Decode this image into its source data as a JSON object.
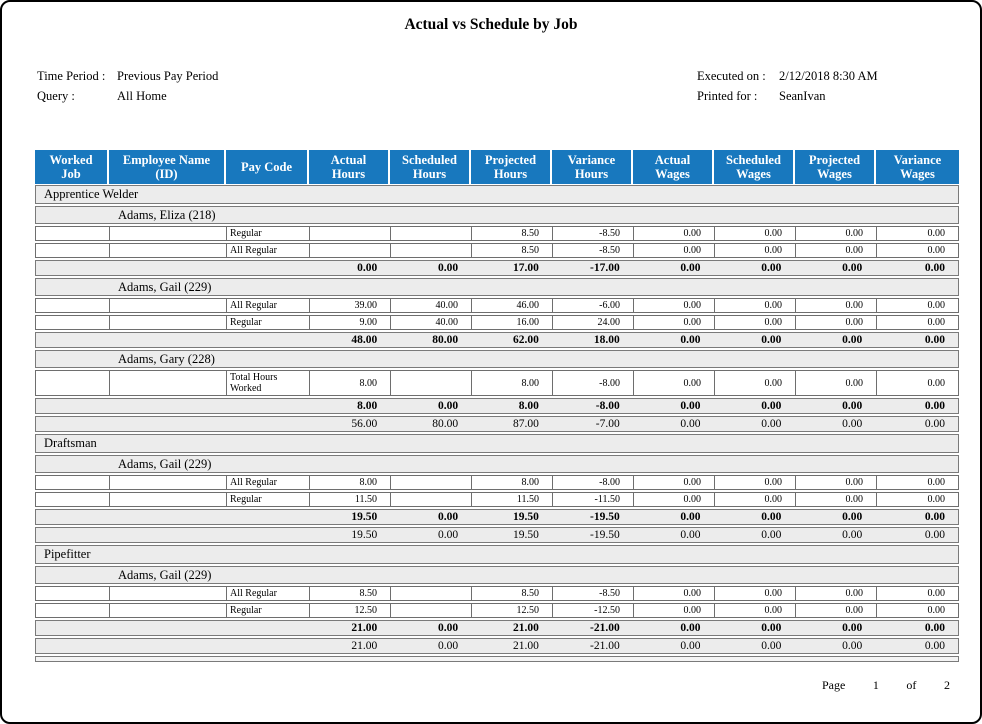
{
  "report": {
    "title": "Actual vs Schedule by Job",
    "meta_left": [
      {
        "label": "Time Period :",
        "value": "Previous Pay Period"
      },
      {
        "label": "Query :",
        "value": "All Home"
      }
    ],
    "meta_right": [
      {
        "label": "Executed on :",
        "value": "2/12/2018 8:30 AM"
      },
      {
        "label": "Printed for :",
        "value": "SeanIvan"
      }
    ],
    "footer": {
      "page_label": "Page",
      "page_number": "1",
      "of_label": "of",
      "total_pages": "2"
    }
  },
  "colors": {
    "header_bg": "#1878BE",
    "header_text": "#FFFFFF",
    "group_row_bg": "#ECECEC",
    "detail_border": "#6E6E6E",
    "group_border": "#7A7A7A",
    "page_border": "#000000"
  },
  "table": {
    "columns": [
      "Worked\nJob",
      "Employee Name\n(ID)",
      "Pay Code",
      "Actual\nHours",
      "Scheduled\nHours",
      "Projected\nHours",
      "Variance\nHours",
      "Actual\nWages",
      "Scheduled\nWages",
      "Projected\nWages",
      "Variance\nWages"
    ],
    "jobs": [
      {
        "name": "Apprentice Welder",
        "employees": [
          {
            "name": "Adams, Eliza (218)",
            "rows": [
              {
                "pay_code": "Regular",
                "values": [
                  "",
                  "",
                  "8.50",
                  "-8.50",
                  "0.00",
                  "0.00",
                  "0.00",
                  "0.00"
                ]
              },
              {
                "pay_code": "All Regular",
                "values": [
                  "",
                  "",
                  "8.50",
                  "-8.50",
                  "0.00",
                  "0.00",
                  "0.00",
                  "0.00"
                ]
              }
            ],
            "total": [
              "0.00",
              "0.00",
              "17.00",
              "-17.00",
              "0.00",
              "0.00",
              "0.00",
              "0.00"
            ]
          },
          {
            "name": "Adams, Gail (229)",
            "rows": [
              {
                "pay_code": "All Regular",
                "values": [
                  "39.00",
                  "40.00",
                  "46.00",
                  "-6.00",
                  "0.00",
                  "0.00",
                  "0.00",
                  "0.00"
                ]
              },
              {
                "pay_code": "Regular",
                "values": [
                  "9.00",
                  "40.00",
                  "16.00",
                  "24.00",
                  "0.00",
                  "0.00",
                  "0.00",
                  "0.00"
                ]
              }
            ],
            "total": [
              "48.00",
              "80.00",
              "62.00",
              "18.00",
              "0.00",
              "0.00",
              "0.00",
              "0.00"
            ]
          },
          {
            "name": "Adams, Gary (228)",
            "rows": [
              {
                "pay_code": "Total Hours Worked",
                "values": [
                  "8.00",
                  "",
                  "8.00",
                  "-8.00",
                  "0.00",
                  "0.00",
                  "0.00",
                  "0.00"
                ]
              }
            ],
            "total": [
              "8.00",
              "0.00",
              "8.00",
              "-8.00",
              "0.00",
              "0.00",
              "0.00",
              "0.00"
            ]
          }
        ],
        "job_total": [
          "56.00",
          "80.00",
          "87.00",
          "-7.00",
          "0.00",
          "0.00",
          "0.00",
          "0.00"
        ]
      },
      {
        "name": "Draftsman",
        "employees": [
          {
            "name": "Adams, Gail (229)",
            "rows": [
              {
                "pay_code": "All Regular",
                "values": [
                  "8.00",
                  "",
                  "8.00",
                  "-8.00",
                  "0.00",
                  "0.00",
                  "0.00",
                  "0.00"
                ]
              },
              {
                "pay_code": "Regular",
                "values": [
                  "11.50",
                  "",
                  "11.50",
                  "-11.50",
                  "0.00",
                  "0.00",
                  "0.00",
                  "0.00"
                ]
              }
            ],
            "total": [
              "19.50",
              "0.00",
              "19.50",
              "-19.50",
              "0.00",
              "0.00",
              "0.00",
              "0.00"
            ]
          }
        ],
        "job_total": [
          "19.50",
          "0.00",
          "19.50",
          "-19.50",
          "0.00",
          "0.00",
          "0.00",
          "0.00"
        ]
      },
      {
        "name": "Pipefitter",
        "employees": [
          {
            "name": "Adams, Gail (229)",
            "rows": [
              {
                "pay_code": "All Regular",
                "values": [
                  "8.50",
                  "",
                  "8.50",
                  "-8.50",
                  "0.00",
                  "0.00",
                  "0.00",
                  "0.00"
                ]
              },
              {
                "pay_code": "Regular",
                "values": [
                  "12.50",
                  "",
                  "12.50",
                  "-12.50",
                  "0.00",
                  "0.00",
                  "0.00",
                  "0.00"
                ]
              }
            ],
            "total": [
              "21.00",
              "0.00",
              "21.00",
              "-21.00",
              "0.00",
              "0.00",
              "0.00",
              "0.00"
            ]
          }
        ],
        "job_total": [
          "21.00",
          "0.00",
          "21.00",
          "-21.00",
          "0.00",
          "0.00",
          "0.00",
          "0.00"
        ]
      }
    ]
  }
}
